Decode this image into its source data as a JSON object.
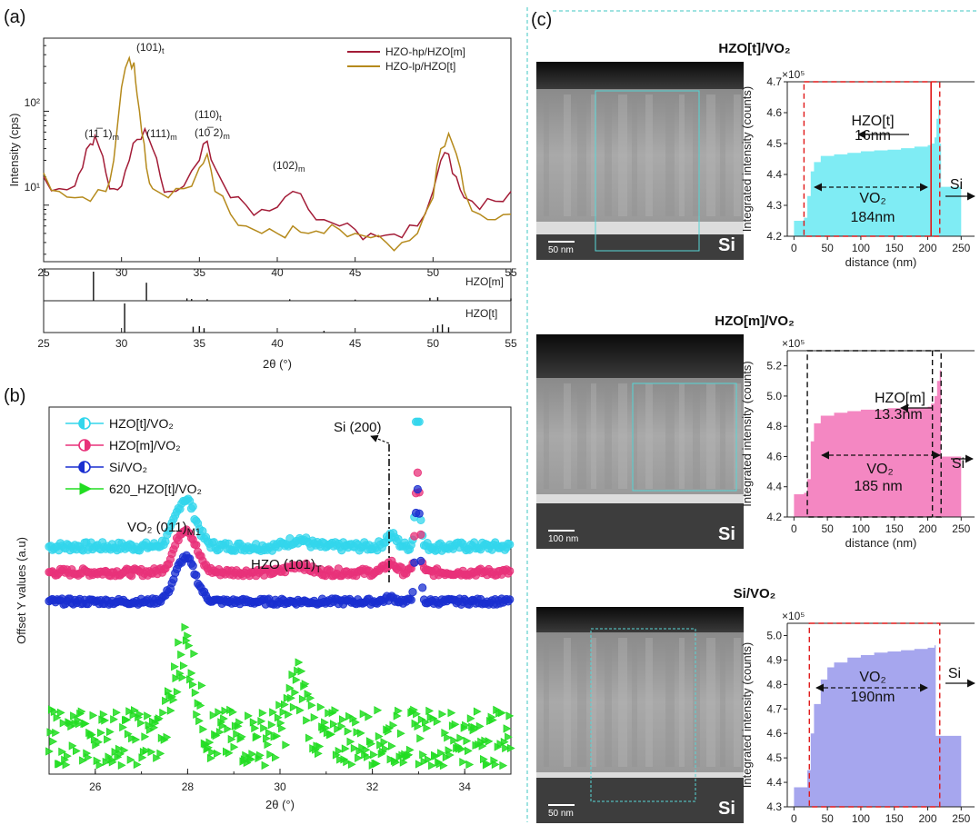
{
  "panels": {
    "a": {
      "label": "(a)"
    },
    "b": {
      "label": "(b)"
    },
    "c": {
      "label": "(c)"
    }
  },
  "chart_data": [
    {
      "id": "a-top",
      "type": "line",
      "ylabel": "Intensity (cps)",
      "xlim": [
        25,
        55
      ],
      "ylim_log": [
        2.5,
        600
      ],
      "log_y": true,
      "x_ticks": [
        "25",
        "30",
        "35",
        "40",
        "45",
        "50",
        "55"
      ],
      "y_ticks": [
        "10¹",
        "10²"
      ],
      "legend_position": "top-right",
      "series": [
        {
          "name": "HZO-hp/HZO[m]",
          "color": "#a31c37",
          "x": [
            25,
            26,
            27,
            27.5,
            28,
            28.3,
            28.6,
            29,
            29.5,
            30,
            30.5,
            31,
            31.5,
            32,
            32.5,
            33,
            34,
            35,
            35.5,
            36,
            37,
            38,
            39,
            40,
            41,
            42,
            43,
            44,
            45,
            46,
            47,
            48,
            49,
            50,
            50.5,
            51,
            51.5,
            52,
            53,
            54,
            55
          ],
          "y": [
            20,
            15,
            16,
            25,
            45,
            55,
            40,
            22,
            15,
            16,
            30,
            50,
            65,
            40,
            20,
            14,
            16,
            30,
            48,
            25,
            12,
            10,
            9,
            9.5,
            14,
            9,
            7,
            6,
            5.5,
            5,
            4.8,
            4.5,
            6,
            14,
            30,
            35,
            20,
            12,
            9,
            11,
            14
          ]
        },
        {
          "name": "HZO-lp/HZO[t]",
          "color": "#b58a1c",
          "x": [
            25,
            26,
            27,
            28,
            29,
            29.5,
            30,
            30.5,
            30.8,
            31,
            31.3,
            31.6,
            32,
            33,
            34,
            35,
            35.5,
            36,
            37,
            38,
            39,
            40,
            41,
            42,
            43,
            44,
            45,
            46,
            47,
            48,
            49,
            50,
            50.5,
            51,
            51.5,
            52,
            53,
            54,
            55
          ],
          "y": [
            22,
            14,
            12,
            11,
            14,
            30,
            180,
            370,
            330,
            150,
            60,
            25,
            15,
            12,
            15,
            25,
            35,
            14,
            8,
            6,
            5,
            5,
            6,
            5,
            5,
            5.5,
            5,
            4.5,
            4,
            4,
            5,
            12,
            40,
            58,
            35,
            14,
            8,
            7,
            8
          ]
        }
      ],
      "annotations": [
        {
          "text": "(101)",
          "sub": "t",
          "color": "#a31c37"
        },
        {
          "text": "(11̅ 1)",
          "sub": "m",
          "color": "#b58a1c"
        },
        {
          "text": "(111)",
          "sub": "m",
          "color": "#b58a1c"
        },
        {
          "text": "(110)",
          "sub": "t",
          "color": "#a31c37"
        },
        {
          "text": "(10̅ 2)",
          "sub": "m",
          "color": "#b58a1c"
        },
        {
          "text": "(102)",
          "sub": "m",
          "color": "#b58a1c"
        }
      ]
    },
    {
      "id": "a-ref",
      "type": "bar",
      "xlabel": "2θ (°)",
      "xlim": [
        25,
        55
      ],
      "x_ticks": [
        "25",
        "30",
        "35",
        "40",
        "45",
        "50",
        "55"
      ],
      "series": [
        {
          "name": "HZO[m]",
          "x": [
            28.2,
            31.6,
            34.2,
            34.5,
            35.5,
            40.8,
            45,
            49.8,
            50.3,
            55
          ],
          "values": [
            1,
            0.62,
            0.08,
            0.06,
            0.06,
            0.05,
            0.04,
            0.1,
            0.12,
            0.08
          ]
        },
        {
          "name": "HZO[t]",
          "x": [
            30.2,
            34.6,
            35.0,
            35.3,
            43.0,
            50.3,
            50.6,
            51.0
          ],
          "values": [
            1,
            0.2,
            0.22,
            0.15,
            0.06,
            0.25,
            0.28,
            0.18
          ]
        }
      ]
    },
    {
      "id": "b",
      "type": "scatter",
      "xlabel": "2θ (°)",
      "ylabel": "Offset Y values (a.u)",
      "xlim": [
        25,
        35
      ],
      "x_ticks": [
        "26",
        "28",
        "30",
        "32",
        "34"
      ],
      "legend_position": "top-left",
      "series": [
        {
          "name": "HZO[t]/VO₂",
          "color": "#33d6ec",
          "baseline": 0.62
        },
        {
          "name": "HZO[m]/VO₂",
          "color": "#e8327a",
          "baseline": 0.55
        },
        {
          "name": "Si/VO₂",
          "color": "#1a2fd0",
          "baseline": 0.47
        },
        {
          "name": "620_HZO[t]/VO₂",
          "color": "#22dd22",
          "baseline": 0.1
        }
      ],
      "annotations": [
        {
          "text": "Si (200)"
        },
        {
          "text": "VO₂ (011)",
          "sub": "M1"
        },
        {
          "text": "HZO (101)",
          "sub": "T"
        }
      ]
    },
    {
      "id": "c1",
      "type": "area",
      "title": "HZO[t]/VO₂",
      "xlabel": "distance (nm)",
      "ylabel": "Integrated intensity (counts)",
      "multiplier": "×10⁵",
      "xlim": [
        -10,
        270
      ],
      "ylim": [
        4.2,
        4.7
      ],
      "x_ticks": [
        "0",
        "50",
        "100",
        "150",
        "200",
        "250"
      ],
      "y_ticks": [
        "4.2",
        "4.3",
        "4.4",
        "4.5",
        "4.6",
        "4.7"
      ],
      "color": "#7fecf4",
      "x": [
        0,
        10,
        15,
        20,
        25,
        30,
        40,
        60,
        80,
        100,
        120,
        140,
        160,
        180,
        200,
        205,
        210,
        213,
        216,
        218,
        220,
        240,
        250
      ],
      "y": [
        4.25,
        4.25,
        4.26,
        4.33,
        4.41,
        4.44,
        4.46,
        4.465,
        4.47,
        4.475,
        4.478,
        4.48,
        4.485,
        4.49,
        4.495,
        4.5,
        4.52,
        4.58,
        4.64,
        4.5,
        4.36,
        4.36,
        4.36
      ],
      "annotations": [
        {
          "text": "HZO[t]"
        },
        {
          "text": "16nm"
        },
        {
          "text": "VO₂"
        },
        {
          "text": "184nm"
        },
        {
          "text": "Si"
        }
      ],
      "tem_scale": "50 nm",
      "tem_label": "Si"
    },
    {
      "id": "c2",
      "type": "area",
      "title": "HZO[m]/VO₂",
      "xlabel": "distance (nm)",
      "ylabel": "Integrated intensity (counts)",
      "multiplier": "×10⁵",
      "xlim": [
        -10,
        270
      ],
      "ylim": [
        4.2,
        5.3
      ],
      "x_ticks": [
        "0",
        "50",
        "100",
        "150",
        "200",
        "250"
      ],
      "y_ticks": [
        "4.2",
        "4.4",
        "4.6",
        "4.8",
        "5.0",
        "5.2"
      ],
      "color": "#f487c2",
      "x": [
        0,
        10,
        15,
        20,
        25,
        30,
        40,
        60,
        80,
        100,
        120,
        140,
        160,
        180,
        200,
        205,
        210,
        214,
        218,
        220,
        235,
        250
      ],
      "y": [
        4.35,
        4.35,
        4.36,
        4.45,
        4.7,
        4.82,
        4.87,
        4.89,
        4.9,
        4.91,
        4.91,
        4.92,
        4.92,
        4.92,
        4.93,
        4.95,
        5.0,
        5.1,
        5.17,
        4.6,
        4.6,
        4.6
      ],
      "annotations": [
        {
          "text": "HZO[m]"
        },
        {
          "text": "13.3nm"
        },
        {
          "text": "VO₂"
        },
        {
          "text": "185 nm"
        },
        {
          "text": "Si"
        }
      ],
      "tem_scale": "100 nm",
      "tem_label": "Si"
    },
    {
      "id": "c3",
      "type": "area",
      "title": "Si/VO₂",
      "xlabel": "distance (nm)",
      "ylabel": "Integrated intensity (counts)",
      "multiplier": "×10⁵",
      "xlim": [
        -10,
        270
      ],
      "ylim": [
        4.3,
        5.05
      ],
      "x_ticks": [
        "0",
        "50",
        "100",
        "150",
        "200",
        "250"
      ],
      "y_ticks": [
        "4.3",
        "4.4",
        "4.5",
        "4.6",
        "4.7",
        "4.8",
        "4.9",
        "5.0"
      ],
      "color": "#a6a6ee",
      "x": [
        0,
        10,
        15,
        20,
        25,
        30,
        40,
        50,
        60,
        80,
        100,
        120,
        140,
        160,
        180,
        200,
        210,
        212,
        215,
        225,
        250
      ],
      "y": [
        4.38,
        4.38,
        4.38,
        4.45,
        4.6,
        4.72,
        4.82,
        4.87,
        4.89,
        4.91,
        4.92,
        4.93,
        4.935,
        4.94,
        4.945,
        4.95,
        4.96,
        4.59,
        4.59,
        4.59,
        4.59
      ],
      "annotations": [
        {
          "text": "VO₂"
        },
        {
          "text": "190nm"
        },
        {
          "text": "Si"
        }
      ],
      "tem_scale": "50 nm",
      "tem_label": "Si"
    }
  ]
}
